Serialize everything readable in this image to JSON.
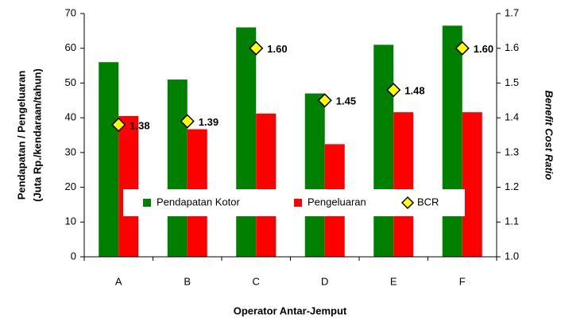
{
  "chart_data": {
    "type": "bar",
    "x_label": "Operator Antar-Jemput",
    "y_label": [
      "Pendapatan / Pengeluaran",
      "(Juta Rp./kendaraan/tahun)"
    ],
    "y2_label": "Benefit Cost Ratio",
    "categories": [
      "A",
      "B",
      "C",
      "D",
      "E",
      "F"
    ],
    "series": [
      {
        "name": "Pendapatan Kotor",
        "color": "#008000",
        "values": [
          56,
          51,
          66,
          47,
          61,
          66.5
        ]
      },
      {
        "name": "Pengeluaran",
        "color": "#ff0000",
        "values": [
          40.5,
          36.7,
          41.2,
          32.4,
          41.6,
          41.6
        ]
      },
      {
        "name": "BCR",
        "type": "marker",
        "axis": "y2",
        "color": "#ffff00",
        "values": [
          1.38,
          1.39,
          1.6,
          1.45,
          1.48,
          1.6
        ],
        "value_labels": [
          "1.38",
          "1.39",
          "1.60",
          "1.45",
          "1.48",
          "1.60"
        ]
      }
    ],
    "ylim": [
      0,
      70
    ],
    "yticks": [
      0,
      10,
      20,
      30,
      40,
      50,
      60,
      70
    ],
    "y2lim": [
      1,
      1.7
    ],
    "y2ticks": [
      {
        "value": 1,
        "label": "1.0"
      },
      1.1,
      1.2,
      1.3,
      1.4,
      1.5,
      1.6,
      1.7
    ],
    "grid": false,
    "legend": "center"
  }
}
